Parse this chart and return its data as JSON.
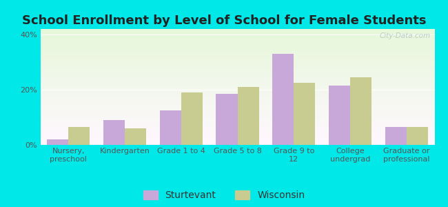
{
  "title": "School Enrollment by Level of School for Female Students",
  "categories": [
    "Nursery,\npreschool",
    "Kindergarten",
    "Grade 1 to 4",
    "Grade 5 to 8",
    "Grade 9 to\n12",
    "College\nundergrad",
    "Graduate or\nprofessional"
  ],
  "sturtevant": [
    2.0,
    9.0,
    12.5,
    18.5,
    33.0,
    21.5,
    6.5
  ],
  "wisconsin": [
    6.5,
    6.0,
    19.0,
    21.0,
    22.5,
    24.5,
    6.5
  ],
  "sturtevant_color": "#c8a8d8",
  "wisconsin_color": "#c8cc90",
  "bar_width": 0.38,
  "ylim": [
    0,
    42
  ],
  "yticks": [
    0,
    20,
    40
  ],
  "ytick_labels": [
    "0%",
    "20%",
    "40%"
  ],
  "figure_bg_color": "#00e8e8",
  "legend_labels": [
    "Sturtevant",
    "Wisconsin"
  ],
  "title_fontsize": 13,
  "tick_fontsize": 8,
  "legend_fontsize": 10,
  "watermark": "City-Data.com",
  "title_color": "#222222"
}
